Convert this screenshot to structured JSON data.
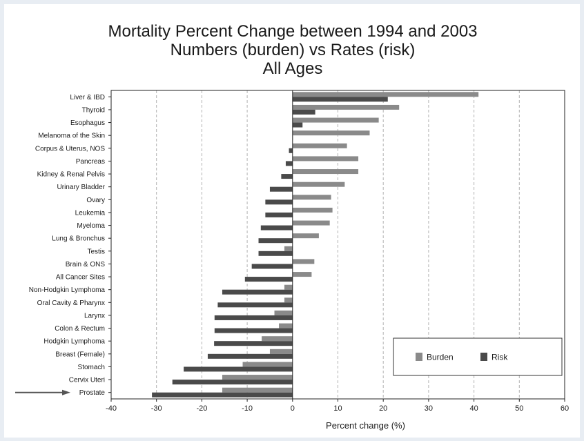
{
  "chart_data": {
    "type": "bar",
    "orientation": "horizontal",
    "title_lines": [
      "Mortality Percent Change between 1994 and 2003",
      "Numbers (burden) vs Rates (risk)",
      "All Ages"
    ],
    "xlabel": "Percent change (%)",
    "xlim": [
      -40,
      60
    ],
    "xticks": [
      -40,
      -30,
      -20,
      -10,
      0,
      10,
      20,
      30,
      40,
      50,
      60
    ],
    "grid": "vertical dashed",
    "legend_position": "lower-right",
    "highlight": "Prostate",
    "categories": [
      "Liver & IBD",
      "Thyroid",
      "Esophagus",
      "Melanoma of the Skin",
      "Corpus & Uterus, NOS",
      "Pancreas",
      "Kidney & Renal Pelvis",
      "Urinary Bladder",
      "Ovary",
      "Leukemia",
      "Myeloma",
      "Lung & Bronchus",
      "Testis",
      "Brain & ONS",
      "All Cancer Sites",
      "Non-Hodgkin Lymphoma",
      "Oral Cavity & Pharynx",
      "Larynx",
      "Colon & Rectum",
      "Hodgkin Lymphoma",
      "Breast (Female)",
      "Stomach",
      "Cervix Uteri",
      "Prostate"
    ],
    "series": [
      {
        "name": "Burden",
        "color": "#8a8a8a",
        "values": [
          41,
          23.5,
          19,
          17,
          12,
          14.5,
          14.5,
          11.5,
          8.5,
          8.8,
          8.2,
          5.8,
          -1.8,
          4.8,
          4.2,
          -1.8,
          -1.8,
          -4,
          -3,
          -6.8,
          -5,
          -11,
          -15.5,
          -15.5
        ]
      },
      {
        "name": "Risk",
        "color": "#4a4a4a",
        "values": [
          21,
          5,
          2.2,
          0,
          -0.8,
          -1.5,
          -2.5,
          -5,
          -6,
          -6,
          -7,
          -7.5,
          -7.5,
          -9,
          -10.5,
          -15.5,
          -16.5,
          -17.2,
          -17.2,
          -17.3,
          -18.7,
          -24,
          -26.5,
          -31
        ]
      }
    ]
  }
}
